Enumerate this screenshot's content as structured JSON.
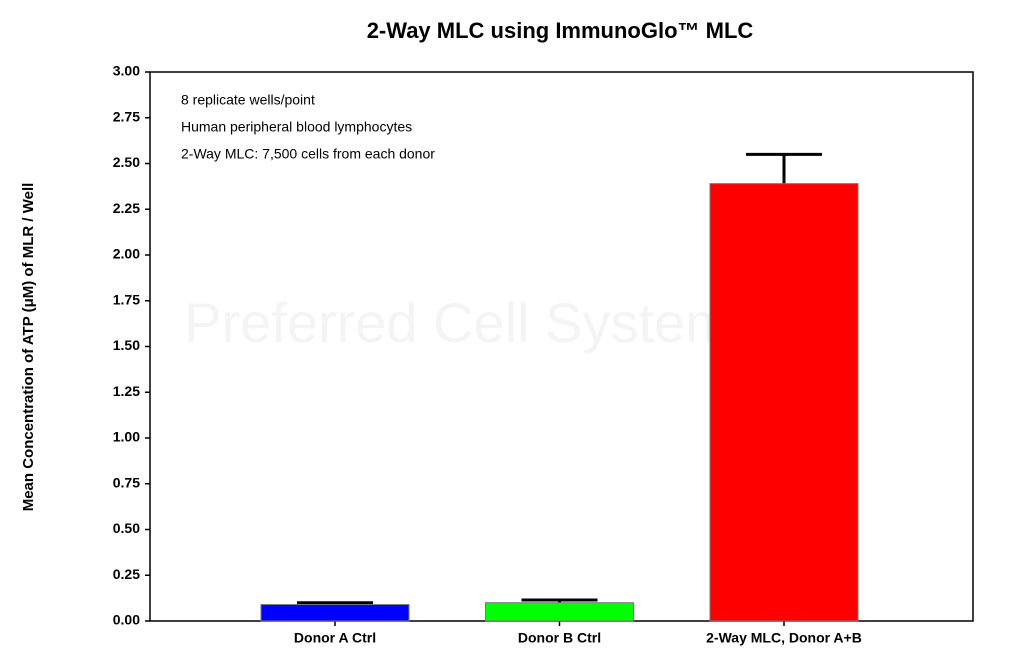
{
  "chart_data": {
    "type": "bar",
    "title": "2-Way MLC using ImmunoGlo™ MLC",
    "y_label": "Mean Concentration of ATP (μM) of MLR /  Well",
    "annotations": [
      "8 replicate wells/point",
      "Human peripheral blood lymphocytes",
      "2-Way MLC: 7,500 cells from each donor"
    ],
    "watermark": "Preferred Cell Systems™",
    "categories": [
      "Donor A Ctrl",
      "Donor B Ctrl",
      "2-Way MLC, Donor A+B"
    ],
    "values": [
      0.09,
      0.1,
      2.39
    ],
    "errors": [
      0.01,
      0.015,
      0.16
    ],
    "colors": [
      "#0000ff",
      "#00ff00",
      "#ff0000"
    ],
    "ylim": [
      0,
      3
    ],
    "yticks": [
      {
        "value": 0,
        "label": "0.00"
      },
      0.25,
      {
        "value": 0.5,
        "label": "0.50"
      },
      0.75,
      {
        "value": 1,
        "label": "1.00"
      },
      1.25,
      {
        "value": 1.5,
        "label": "1.50"
      },
      1.75,
      {
        "value": 2,
        "label": "2.00"
      },
      2.25,
      {
        "value": 2.5,
        "label": "2.50"
      },
      2.75,
      {
        "value": 3,
        "label": "3.00"
      }
    ]
  }
}
